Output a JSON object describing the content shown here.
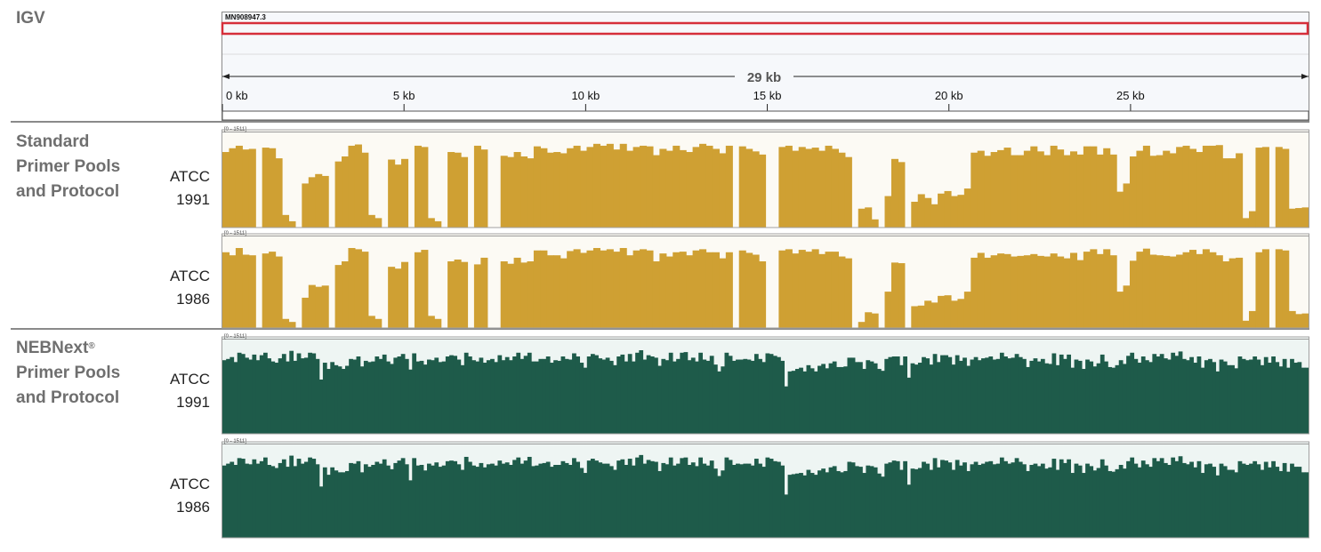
{
  "app_title": "IGV",
  "groups": [
    {
      "line1": "Standard",
      "line2": "Primer Pools",
      "line3": "and Protocol",
      "reg": ""
    },
    {
      "line1": "NEBNext",
      "line2": "Primer Pools",
      "line3": "and Protocol",
      "reg": "®"
    }
  ],
  "samples": [
    {
      "line1": "ATCC",
      "line2": "1991"
    },
    {
      "line1": "ATCC",
      "line2": "1986"
    },
    {
      "line1": "ATCC",
      "line2": "1991"
    },
    {
      "line1": "ATCC",
      "line2": "1986"
    }
  ],
  "chart_data": {
    "type": "area",
    "chromosome": "MN908947.3",
    "span_label": "29 kb",
    "x_tick_labels": [
      "0 kb",
      "5 kb",
      "10 kb",
      "15 kb",
      "20 kb",
      "25 kb"
    ],
    "x_ticks_kb": [
      0,
      5,
      10,
      15,
      20,
      25
    ],
    "xlim_kb": [
      0,
      29.9
    ],
    "track_range_label": "[0 - 1511]",
    "ylim": [
      0,
      1511
    ],
    "colors": {
      "standard": "#cfa033",
      "nebnext": "#1e5b4a",
      "highlight": "#d62e3a"
    },
    "series": [
      {
        "name": "ATCC 1991",
        "group": "standard",
        "color": "#cfa033",
        "values": [
          1200,
          1260,
          1300,
          1240,
          1250,
          0,
          1270,
          1260,
          1100,
          200,
          100,
          0,
          700,
          800,
          850,
          820,
          0,
          1050,
          1130,
          1300,
          1320,
          1190,
          200,
          150,
          0,
          1080,
          1000,
          1090,
          0,
          1300,
          1280,
          150,
          100,
          0,
          1200,
          1190,
          1120,
          0,
          1300,
          1240,
          0,
          0,
          1140,
          1120,
          1200,
          1130,
          1100,
          1290,
          1260,
          1190,
          1200,
          1180,
          1260,
          1300,
          1220,
          1280,
          1330,
          1300,
          1330,
          1240,
          1330,
          1220,
          1280,
          1300,
          1290,
          1150,
          1250,
          1220,
          1300,
          1230,
          1200,
          1280,
          1330,
          1300,
          1250,
          1180,
          1300,
          0,
          1290,
          1250,
          1210,
          1160,
          0,
          0,
          1280,
          1300,
          1220,
          1280,
          1250,
          1270,
          1220,
          1300,
          1250,
          1190,
          1120,
          0,
          300,
          320,
          130,
          0,
          500,
          1090,
          1040,
          0,
          410,
          530,
          470,
          370,
          540,
          580,
          500,
          520,
          620,
          1190,
          1220,
          1140,
          1200,
          1230,
          1270,
          1150,
          1150,
          1220,
          1290,
          1210,
          1150,
          1300,
          1240,
          1150,
          1210,
          1160,
          1290,
          1290,
          1160,
          1260,
          1160,
          570,
          700,
          1130,
          1220,
          1300,
          1140,
          1150,
          1220,
          1180,
          1280,
          1300,
          1250,
          1200,
          1300,
          1300,
          1310,
          1100,
          1100,
          1180,
          150,
          260,
          1270,
          1280,
          0,
          1280,
          1250,
          300,
          310,
          320
        ]
      },
      {
        "name": "ATCC 1986",
        "group": "standard",
        "color": "#cfa033",
        "values": [
          1250,
          1200,
          1320,
          1210,
          1200,
          0,
          1230,
          1260,
          1180,
          150,
          100,
          0,
          500,
          710,
          680,
          700,
          0,
          1040,
          1100,
          1320,
          1300,
          1260,
          200,
          150,
          0,
          1010,
          980,
          1090,
          0,
          1250,
          1290,
          200,
          150,
          0,
          1100,
          1130,
          1090,
          0,
          1050,
          1160,
          0,
          0,
          1100,
          1060,
          1160,
          1080,
          1100,
          1280,
          1280,
          1200,
          1200,
          1150,
          1270,
          1300,
          1240,
          1280,
          1320,
          1280,
          1300,
          1260,
          1320,
          1200,
          1280,
          1300,
          1280,
          1100,
          1230,
          1180,
          1250,
          1260,
          1200,
          1280,
          1300,
          1250,
          1250,
          1150,
          1250,
          0,
          1280,
          1240,
          1210,
          1100,
          0,
          0,
          1280,
          1300,
          1230,
          1290,
          1260,
          1300,
          1220,
          1260,
          1260,
          1180,
          1150,
          0,
          100,
          260,
          240,
          0,
          600,
          1080,
          1070,
          0,
          360,
          370,
          450,
          420,
          530,
          540,
          450,
          480,
          600,
          1160,
          1240,
          1160,
          1200,
          1230,
          1220,
          1180,
          1190,
          1200,
          1220,
          1190,
          1180,
          1230,
          1180,
          1150,
          1240,
          1120,
          1260,
          1300,
          1220,
          1300,
          1200,
          600,
          700,
          1110,
          1260,
          1310,
          1210,
          1200,
          1190,
          1180,
          1210,
          1250,
          1290,
          1220,
          1300,
          1250,
          1200,
          1100,
          1150,
          1160,
          120,
          280,
          1250,
          1300,
          0,
          1300,
          1280,
          280,
          230,
          240
        ]
      },
      {
        "name": "ATCC 1991",
        "group": "nebnext",
        "color": "#1e5b4a",
        "values": [
          1180,
          1200,
          1230,
          1150,
          1300,
          1280,
          1220,
          1190,
          1270,
          1180,
          1260,
          1300,
          1210,
          1160,
          1140,
          1210,
          1280,
          1160,
          1330,
          1170,
          1290,
          1210,
          1220,
          1300,
          1290,
          1200,
          870,
          1140,
          1040,
          1150,
          1100,
          1080,
          1040,
          1090,
          1200,
          1190,
          1240,
          1080,
          1170,
          1150,
          1160,
          1240,
          1200,
          1270,
          1160,
          1120,
          1220,
          1240,
          1280,
          1200,
          1030,
          1290,
          1160,
          1170,
          1110,
          1190,
          1180,
          1220,
          1150,
          1160,
          1240,
          1260,
          1250,
          1190,
          1100,
          1300,
          1240,
          1180,
          1160,
          1220,
          1140,
          1180,
          1200,
          1150,
          1260,
          1180,
          1230,
          1180,
          1240,
          1300,
          1200,
          1250,
          1300,
          1160,
          1160,
          1200,
          1200,
          1240,
          1140,
          1180,
          1170,
          1240,
          1200,
          1190,
          1290,
          1240,
          1140,
          1060,
          1240,
          1280,
          1260,
          1210,
          1190,
          1220,
          1170,
          1100,
          1240,
          1270,
          1160,
          1280,
          1160,
          1300,
          1340,
          1190,
          1260,
          1240,
          1220,
          1090,
          1200,
          1180,
          1300,
          1160,
          1200,
          1300,
          1310,
          1180,
          1220,
          1160,
          1300,
          1190,
          1170,
          1250,
          1110,
          1000,
          1080,
          1300,
          1250,
          1170,
          1190,
          1190,
          1200,
          1190,
          1170,
          1280,
          1200,
          1150,
          1290,
          1280,
          1250,
          1230,
          1170,
          760,
          1000,
          1010,
          1040,
          1060,
          1000,
          1100,
          1050,
          1000,
          1090,
          1120,
          1050,
          1130,
          1160,
          1070,
          1070,
          1080,
          1220,
          1220,
          1150,
          1150,
          1040,
          1180,
          1160,
          1130,
          1040,
          1010,
          1200,
          1230,
          1240,
          1240,
          1100,
          1240,
          900,
          1130,
          1110,
          1140,
          1230,
          1210,
          1110,
          1280,
          1150,
          1260,
          1260,
          1230,
          1110,
          1260,
          1170,
          1220,
          1090,
          1190,
          1230,
          1180,
          1210,
          1220,
          1240,
          1190,
          1200,
          1300,
          1240,
          1210,
          1220,
          1280,
          1230,
          1200,
          1070,
          1170,
          1210,
          1160,
          1200,
          1130,
          1120,
          1290,
          1100,
          1270,
          1200,
          1270,
          1060,
          1190,
          1170,
          1040,
          1190,
          1160,
          1080,
          1130,
          1270,
          1160,
          1070,
          1060,
          1100,
          1180,
          1120,
          1250,
          1300,
          1200,
          1140,
          1240,
          1180,
          1150,
          1280,
          1240,
          1280,
          1210,
          1190,
          1300,
          1250,
          1320,
          1200,
          1180,
          1230,
          1140,
          1240,
          1060,
          1180,
          1200,
          1150,
          1000,
          1190,
          1160,
          1100,
          1100,
          1050,
          1240,
          1200,
          1180,
          1190,
          1240,
          1190,
          1100,
          1230,
          1140,
          1240,
          1150,
          1080,
          1200,
          1060,
          1200,
          1140,
          1150,
          1060,
          1060
        ]
      },
      {
        "name": "ATCC 1986",
        "group": "nebnext",
        "color": "#1e5b4a",
        "values": [
          1170,
          1200,
          1230,
          1180,
          1290,
          1280,
          1200,
          1190,
          1270,
          1200,
          1240,
          1300,
          1180,
          1160,
          1130,
          1210,
          1270,
          1150,
          1330,
          1160,
          1280,
          1200,
          1230,
          1300,
          1280,
          1190,
          830,
          1140,
          1020,
          1140,
          1090,
          1060,
          1060,
          1080,
          1210,
          1200,
          1240,
          1060,
          1190,
          1150,
          1180,
          1230,
          1200,
          1270,
          1170,
          1110,
          1210,
          1250,
          1290,
          1190,
          930,
          1290,
          1170,
          1180,
          1090,
          1200,
          1170,
          1220,
          1150,
          1170,
          1240,
          1250,
          1240,
          1190,
          1100,
          1310,
          1230,
          1170,
          1150,
          1210,
          1140,
          1190,
          1200,
          1170,
          1250,
          1200,
          1220,
          1180,
          1260,
          1300,
          1200,
          1250,
          1310,
          1160,
          1170,
          1200,
          1210,
          1230,
          1150,
          1180,
          1180,
          1240,
          1210,
          1180,
          1290,
          1230,
          1130,
          1050,
          1250,
          1280,
          1250,
          1220,
          1200,
          1200,
          1160,
          1100,
          1250,
          1270,
          1180,
          1280,
          1170,
          1300,
          1340,
          1200,
          1260,
          1240,
          1230,
          1080,
          1210,
          1190,
          1300,
          1170,
          1200,
          1290,
          1300,
          1180,
          1220,
          1160,
          1300,
          1200,
          1170,
          1250,
          1120,
          1000,
          1090,
          1300,
          1260,
          1180,
          1200,
          1190,
          1200,
          1200,
          1170,
          1280,
          1200,
          1150,
          1300,
          1280,
          1240,
          1230,
          1170,
          700,
          1020,
          1030,
          1040,
          1050,
          1010,
          1100,
          1050,
          1020,
          1090,
          1120,
          1060,
          1140,
          1160,
          1080,
          1060,
          1080,
          1230,
          1220,
          1160,
          1150,
          1050,
          1170,
          1160,
          1140,
          1040,
          990,
          1200,
          1220,
          1250,
          1240,
          1100,
          1240,
          860,
          1120,
          1110,
          1130,
          1230,
          1200,
          1100,
          1290,
          1140,
          1260,
          1250,
          1220,
          1100,
          1260,
          1170,
          1220,
          1080,
          1190,
          1230,
          1180,
          1200,
          1230,
          1240,
          1190,
          1200,
          1300,
          1240,
          1200,
          1220,
          1290,
          1230,
          1190,
          1080,
          1180,
          1200,
          1160,
          1200,
          1120,
          1140,
          1280,
          1100,
          1270,
          1210,
          1270,
          1050,
          1200,
          1170,
          1050,
          1200,
          1160,
          1090,
          1130,
          1270,
          1170,
          1080,
          1070,
          1110,
          1180,
          1120,
          1240,
          1300,
          1200,
          1140,
          1250,
          1190,
          1150,
          1290,
          1240,
          1290,
          1210,
          1180,
          1300,
          1240,
          1320,
          1210,
          1190,
          1230,
          1140,
          1240,
          1050,
          1190,
          1200,
          1150,
          1010,
          1200,
          1160,
          1100,
          1100,
          1060,
          1240,
          1200,
          1180,
          1200,
          1240,
          1190,
          1100,
          1230,
          1140,
          1240,
          1150,
          1080,
          1210,
          1070,
          1200,
          1150,
          1150,
          1060,
          1060
        ]
      }
    ]
  }
}
